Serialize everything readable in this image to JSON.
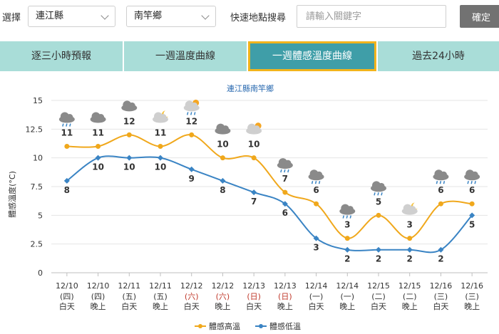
{
  "header": {
    "select_label": "選擇",
    "county_value": "連江縣",
    "town_value": "南竿鄉",
    "quick_search_label": "快速地點搜尋",
    "search_placeholder": "請輸入關鍵字",
    "confirm_label": "確定"
  },
  "tabs": [
    {
      "label": "逐三小時預報",
      "active": false
    },
    {
      "label": "一週溫度曲線",
      "active": false
    },
    {
      "label": "一週體感溫度曲線",
      "active": true
    },
    {
      "label": "過去24小時",
      "active": false
    }
  ],
  "colors": {
    "high": "#f0a81c",
    "low": "#3a84c4",
    "active_tab_border": "#f2b41c",
    "active_tab_bg": "#3f9ea8",
    "tab_bg": "#a9ddd8",
    "weekend": "#c0392b"
  },
  "chart_data": {
    "type": "line",
    "title": "連江縣南竿鄉",
    "ylabel": "體感溫度(°C)",
    "ylim": [
      0,
      15
    ],
    "yticks": [
      "0",
      "2.5",
      "5",
      "7.5",
      "10",
      "12.5",
      "15"
    ],
    "grid": true,
    "legend_position": "bottom-center",
    "categories": [
      {
        "date": "12/10",
        "weekday": "(四)",
        "period": "白天",
        "weekend": false
      },
      {
        "date": "12/10",
        "weekday": "(四)",
        "period": "晚上",
        "weekend": false
      },
      {
        "date": "12/11",
        "weekday": "(五)",
        "period": "白天",
        "weekend": false
      },
      {
        "date": "12/11",
        "weekday": "(五)",
        "period": "晚上",
        "weekend": false
      },
      {
        "date": "12/12",
        "weekday": "(六)",
        "period": "白天",
        "weekend": true
      },
      {
        "date": "12/12",
        "weekday": "(六)",
        "period": "晚上",
        "weekend": true
      },
      {
        "date": "12/13",
        "weekday": "(日)",
        "period": "白天",
        "weekend": true
      },
      {
        "date": "12/13",
        "weekday": "(日)",
        "period": "晚上",
        "weekend": true
      },
      {
        "date": "12/14",
        "weekday": "(一)",
        "period": "白天",
        "weekend": false
      },
      {
        "date": "12/14",
        "weekday": "(一)",
        "period": "晚上",
        "weekend": false
      },
      {
        "date": "12/15",
        "weekday": "(二)",
        "period": "白天",
        "weekend": false
      },
      {
        "date": "12/15",
        "weekday": "(二)",
        "period": "晚上",
        "weekend": false
      },
      {
        "date": "12/16",
        "weekday": "(三)",
        "period": "白天",
        "weekend": false
      },
      {
        "date": "12/16",
        "weekday": "(三)",
        "period": "晚上",
        "weekend": false
      }
    ],
    "series": [
      {
        "name": "體感高溫",
        "values": [
          11,
          11,
          12,
          11,
          12,
          10,
          10,
          7,
          6,
          3,
          5,
          3,
          6,
          6
        ]
      },
      {
        "name": "體感低溫",
        "values": [
          8,
          10,
          10,
          10,
          9,
          8,
          7,
          6,
          3,
          2,
          2,
          2,
          2,
          5
        ]
      }
    ],
    "weather_icons": [
      "cloudy-rain-icon",
      "cloudy-icon",
      "cloudy-icon",
      "partly-cloudy-night-icon",
      "partly-sunny-rain-icon",
      "cloudy-icon",
      "partly-sunny-icon",
      "cloudy-rain-icon",
      "cloudy-rain-icon",
      "cloudy-rain-icon",
      "cloudy-rain-icon",
      "partly-cloudy-night-icon",
      "cloudy-rain-icon",
      "cloudy-rain-icon"
    ]
  }
}
